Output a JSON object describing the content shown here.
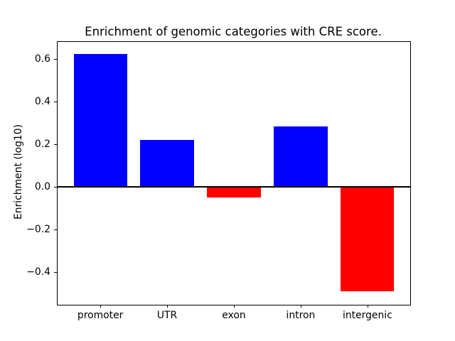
{
  "figure": {
    "background_color": "#ffffff",
    "text_color": "#000000"
  },
  "chart_data": {
    "type": "bar",
    "title": "Enrichment of genomic categories with CRE score.",
    "xlabel": "",
    "ylabel": "Enrichment (log10)",
    "categories": [
      "promoter",
      "UTR",
      "exon",
      "intron",
      "intergenic"
    ],
    "values": [
      0.625,
      0.22,
      -0.05,
      0.285,
      -0.49
    ],
    "bar_colors": [
      "#0000ff",
      "#0000ff",
      "#ff0000",
      "#0000ff",
      "#ff0000"
    ],
    "positive_color": "#0000ff",
    "negative_color": "#ff0000",
    "bar_width": 0.8,
    "xlim": [
      -0.64,
      4.64
    ],
    "ylim": [
      -0.552,
      0.68
    ],
    "yticks": [
      -0.4,
      -0.2,
      0.0,
      0.2,
      0.4,
      0.6
    ],
    "ytick_labels": [
      "−0.4",
      "−0.2",
      "0.0",
      "0.2",
      "0.4",
      "0.6"
    ],
    "zero_line_color": "#000000",
    "axis_color": "#000000",
    "grid": false,
    "legend": null
  }
}
